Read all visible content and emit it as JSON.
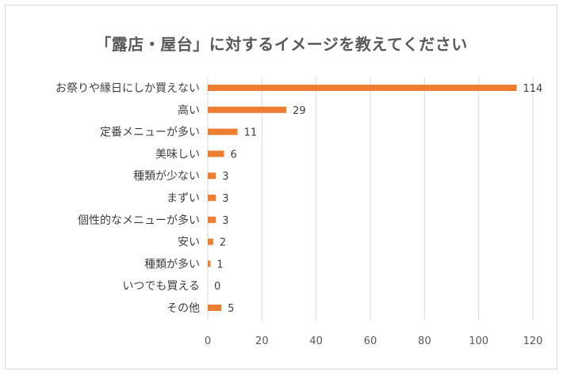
{
  "chart_data": {
    "type": "bar",
    "orientation": "horizontal",
    "title": "「露店・屋台」に対するイメージを教えてください",
    "categories": [
      "お祭りや縁日にしか買えない",
      "高い",
      "定番メニューが多い",
      "美味しい",
      "種類が少ない",
      "まずい",
      "個性的なメニューが多い",
      "安い",
      "種類が多い",
      "いつでも買える",
      "その他"
    ],
    "values": [
      114,
      29,
      11,
      6,
      3,
      3,
      3,
      2,
      1,
      0,
      5
    ],
    "xlim": [
      0,
      120
    ],
    "xticks": [
      0,
      20,
      40,
      60,
      80,
      100,
      120
    ],
    "grid": true,
    "legend": "none",
    "bar_color": "#ED7D31",
    "grid_color": "#d9d9d9"
  }
}
